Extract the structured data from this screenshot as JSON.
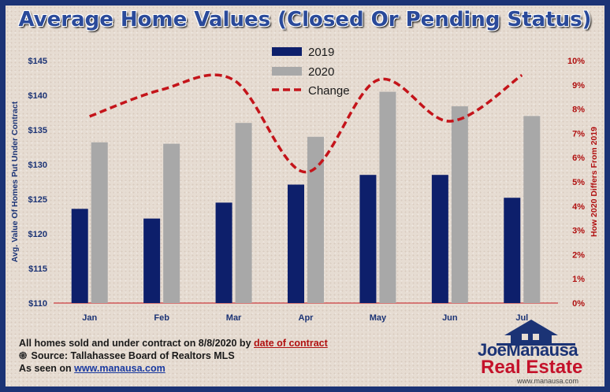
{
  "title": "Average Home Values (Closed Or Pending Status)",
  "chart_data": {
    "type": "bar",
    "categories": [
      "Jan",
      "Feb",
      "Mar",
      "Apr",
      "May",
      "Jun",
      "Jul"
    ],
    "series": [
      {
        "name": "2019",
        "axis": "left",
        "color": "#0d1f6b",
        "values": [
          123.6,
          122.2,
          124.5,
          127.1,
          128.5,
          128.5,
          125.2
        ]
      },
      {
        "name": "2020",
        "axis": "left",
        "color": "#a8a8a8",
        "values": [
          133.2,
          133.0,
          136.0,
          134.0,
          140.5,
          138.4,
          137.0
        ]
      },
      {
        "name": "Change",
        "axis": "right",
        "type": "line",
        "style": "dashed",
        "color": "#c4141a",
        "values": [
          7.7,
          8.8,
          9.2,
          5.4,
          9.2,
          7.5,
          9.4
        ]
      }
    ],
    "ylabel": "Avg. Value Of Homes Put Under Contract",
    "ylim": [
      110,
      145
    ],
    "yticks": [
      "$110",
      "$115",
      "$120",
      "$125",
      "$130",
      "$135",
      "$140",
      "$145"
    ],
    "y2label": "How 2020 Differs From 2019",
    "y2lim": [
      0,
      10
    ],
    "y2ticks": [
      "0%",
      "1%",
      "2%",
      "3%",
      "4%",
      "5%",
      "6%",
      "7%",
      "8%",
      "9%",
      "10%"
    ],
    "legend": "top-center",
    "grid": false
  },
  "footer": {
    "line1_prefix": "All homes sold and under contract on 8/8/2020 by ",
    "line1_link": "date of contract",
    "line2_icon": "swirl-icon",
    "line2": "Source: Tallahassee Board of Realtors MLS",
    "line3_prefix": "As seen on ",
    "line3_link": "www.manausa.com"
  },
  "logo": {
    "first": "Joe",
    "last": "Manausa",
    "second_line": "Real Estate",
    "url": "www.manausa.com",
    "icon": "house-icon"
  }
}
